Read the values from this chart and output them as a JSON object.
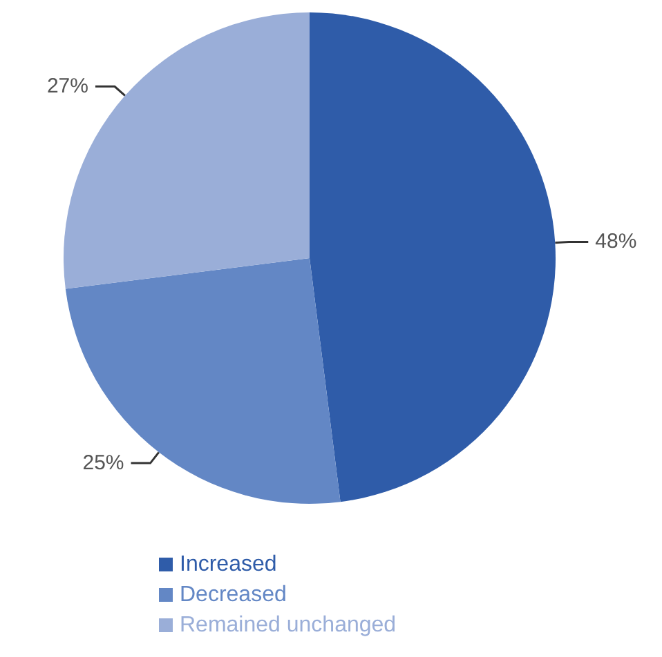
{
  "chart_data": {
    "type": "pie",
    "categories": [
      "Increased",
      "Decreased",
      "Remained unchanged"
    ],
    "values": [
      48,
      25,
      27
    ],
    "value_labels": [
      "48%",
      "25%",
      "27%"
    ],
    "colors": [
      "#2f5ca9",
      "#6387c5",
      "#9aaed8"
    ],
    "legend": "bottom left"
  }
}
